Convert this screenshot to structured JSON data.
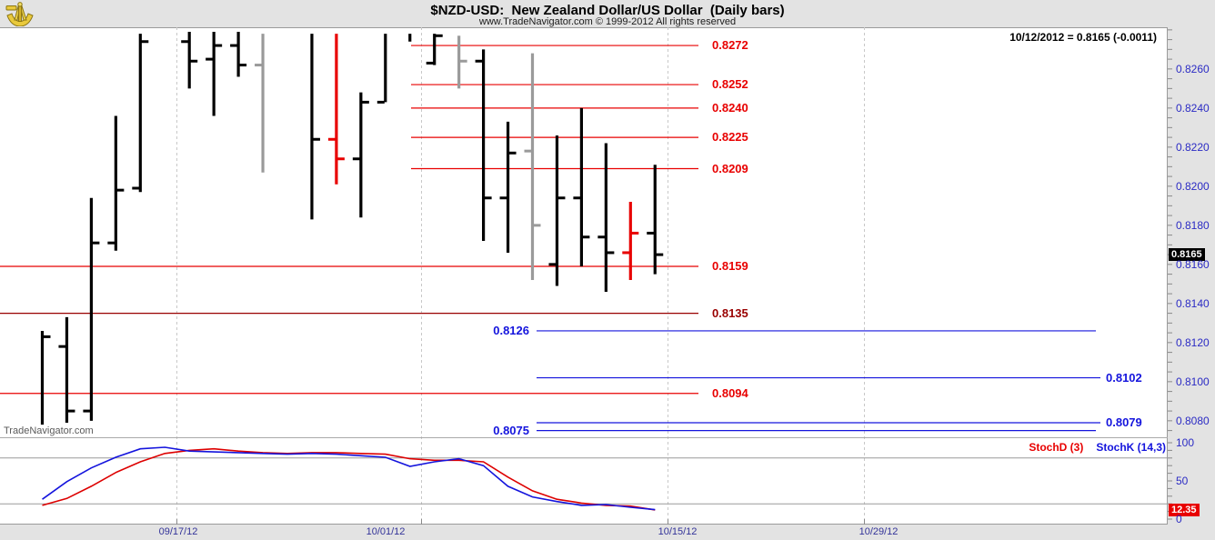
{
  "header": {
    "title": "$NZD-USD:  New Zealand Dollar/US Dollar  (Daily bars)",
    "subtitle": "www.TradeNavigator.com © 1999-2012 All rights reserved",
    "logo": "gold-sextant"
  },
  "main": {
    "quote": "10/12/2012 = 0.8165 (-0.0011)",
    "watermark": "TradeNavigator.com"
  },
  "colors": {
    "background": "#e3e3e3",
    "plot_background": "#ffffff",
    "bar_up": "#000000",
    "bar_down": "#e80000",
    "bar_neutral": "#9a9a9a",
    "level_red": "#e80000",
    "level_dark_red": "#990000",
    "level_blue": "#1414dd",
    "axis_label_blue": "#2b2bc4",
    "date_label_navy": "#333399",
    "stoch_k": "#1414dd",
    "stoch_d": "#dd0000",
    "gridline": "#c8c8c8",
    "price_badge_bg": "#000000",
    "stoch_badge_bg": "#e80000"
  },
  "chart_data": {
    "type": "ohlc-bar",
    "symbol": "$NZD-USD",
    "description": "New Zealand Dollar/US Dollar",
    "interval": "Daily bars",
    "last": {
      "date": "10/12/2012",
      "close": 0.8165,
      "change": -0.0011
    },
    "price_axis": {
      "side": "right",
      "tick_labels": [
        "0.8260",
        "0.8240",
        "0.8220",
        "0.8200",
        "0.8180",
        "0.8160",
        "0.8140",
        "0.8120",
        "0.8100",
        "0.8080"
      ],
      "minor_tick_step": 0.0005,
      "visible_range": [
        0.8072,
        0.8281
      ],
      "badge": "0.8165"
    },
    "x_axis": {
      "labels": [
        "09/17/12",
        "10/01/12",
        "10/15/12",
        "10/29/12"
      ],
      "grid": "dashed-vertical"
    },
    "levels": [
      {
        "label": "0.8272",
        "price": 0.8272,
        "color": "red",
        "style": "resistance"
      },
      {
        "label": "0.8252",
        "price": 0.8252,
        "color": "red",
        "style": "resistance"
      },
      {
        "label": "0.8240",
        "price": 0.824,
        "color": "red",
        "style": "resistance"
      },
      {
        "label": "0.8225",
        "price": 0.8225,
        "color": "red",
        "style": "resistance"
      },
      {
        "label": "0.8209",
        "price": 0.8209,
        "color": "red",
        "style": "resistance"
      },
      {
        "label": "0.8159",
        "price": 0.8159,
        "color": "red",
        "style": "support"
      },
      {
        "label": "0.8135",
        "price": 0.8135,
        "color": "darkred",
        "style": "support"
      },
      {
        "label": "0.8094",
        "price": 0.8094,
        "color": "red",
        "style": "support"
      },
      {
        "label": "0.8126",
        "price": 0.8126,
        "color": "blue",
        "style": "blue-left"
      },
      {
        "label": "0.8102",
        "price": 0.8102,
        "color": "blue",
        "style": "blue-right"
      },
      {
        "label": "0.8079",
        "price": 0.8079,
        "color": "blue",
        "style": "blue-right"
      },
      {
        "label": "0.8075",
        "price": 0.8075,
        "color": "blue",
        "style": "blue-left"
      }
    ],
    "bars": [
      {
        "slot": 0,
        "open": null,
        "high": 0.8126,
        "low": 0.8078,
        "close": 0.8123,
        "color": "black"
      },
      {
        "slot": 1,
        "open": 0.8118,
        "high": 0.8133,
        "low": 0.8079,
        "close": 0.8085,
        "color": "black"
      },
      {
        "slot": 2,
        "open": 0.8085,
        "high": 0.8194,
        "low": 0.808,
        "close": 0.8171,
        "color": "black"
      },
      {
        "slot": 3,
        "open": 0.8171,
        "high": 0.8236,
        "low": 0.8167,
        "close": 0.8198,
        "color": "black"
      },
      {
        "slot": 4,
        "open": 0.8199,
        "high": 0.8278,
        "low": 0.8197,
        "close": 0.8274,
        "color": "black"
      },
      {
        "slot": 6,
        "open": 0.8274,
        "high": 0.8279,
        "low": 0.825,
        "close": 0.8264,
        "color": "black"
      },
      {
        "slot": 7,
        "open": 0.8265,
        "high": 0.8279,
        "low": 0.8236,
        "close": 0.8272,
        "color": "black"
      },
      {
        "slot": 8,
        "open": 0.8272,
        "high": 0.8279,
        "low": 0.8256,
        "close": 0.8262,
        "color": "black"
      },
      {
        "slot": 9,
        "open": 0.8262,
        "high": 0.8278,
        "low": 0.8207,
        "close": null,
        "color": "gray"
      },
      {
        "slot": 11,
        "open": null,
        "high": 0.8278,
        "low": 0.8183,
        "close": 0.8224,
        "color": "black"
      },
      {
        "slot": 12,
        "open": 0.8224,
        "high": 0.8278,
        "low": 0.8201,
        "close": 0.8214,
        "color": "red"
      },
      {
        "slot": 13,
        "open": 0.8214,
        "high": 0.8248,
        "low": 0.8184,
        "close": 0.8243,
        "color": "black"
      },
      {
        "slot": 14,
        "open": 0.8243,
        "high": 0.8278,
        "low": 0.8243,
        "close": null,
        "color": "black"
      },
      {
        "slot": 15,
        "open": null,
        "high": 0.8278,
        "low": 0.8274,
        "close": null,
        "color": "black"
      },
      {
        "slot": 16,
        "open": 0.8263,
        "high": 0.8278,
        "low": 0.8262,
        "close": 0.8277,
        "color": "black"
      },
      {
        "slot": 17,
        "open": null,
        "high": 0.8277,
        "low": 0.825,
        "close": 0.8264,
        "color": "gray"
      },
      {
        "slot": 18,
        "open": 0.8264,
        "high": 0.827,
        "low": 0.8172,
        "close": 0.8194,
        "color": "black"
      },
      {
        "slot": 19,
        "open": 0.8194,
        "high": 0.8233,
        "low": 0.8166,
        "close": 0.8217,
        "color": "black"
      },
      {
        "slot": 20,
        "open": 0.8218,
        "high": 0.8268,
        "low": 0.8152,
        "close": 0.818,
        "color": "gray"
      },
      {
        "slot": 21,
        "open": 0.816,
        "high": 0.8226,
        "low": 0.8149,
        "close": 0.8194,
        "color": "black"
      },
      {
        "slot": 22,
        "open": 0.8194,
        "high": 0.824,
        "low": 0.8159,
        "close": 0.8174,
        "color": "black"
      },
      {
        "slot": 23,
        "open": 0.8174,
        "high": 0.8222,
        "low": 0.8146,
        "close": 0.8166,
        "color": "black"
      },
      {
        "slot": 24,
        "open": 0.8166,
        "high": 0.8192,
        "low": 0.8152,
        "close": 0.8176,
        "color": "red"
      },
      {
        "slot": 25,
        "open": 0.8176,
        "high": 0.8211,
        "low": 0.8155,
        "close": 0.8165,
        "color": "black"
      }
    ],
    "stochastic": {
      "d_label": "StochD (3)",
      "k_label": "StochK (14,3)",
      "axis_labels": [
        "100",
        "50",
        "0"
      ],
      "range": [
        0,
        100
      ],
      "guides": [
        80,
        20
      ],
      "badge": "12.35",
      "last_k": 12.35,
      "k": [
        26,
        49,
        67,
        81,
        92,
        94,
        89,
        88,
        87,
        86,
        85,
        86,
        85,
        83,
        81,
        69,
        75,
        79,
        70,
        43,
        29,
        23,
        18,
        19,
        15.5,
        12.35
      ],
      "d": [
        18,
        27,
        43,
        61,
        75,
        86,
        90,
        92,
        89,
        87,
        86,
        87,
        87,
        86,
        85,
        79,
        77,
        77,
        75,
        55,
        37,
        26,
        21,
        18,
        17,
        12
      ]
    }
  }
}
